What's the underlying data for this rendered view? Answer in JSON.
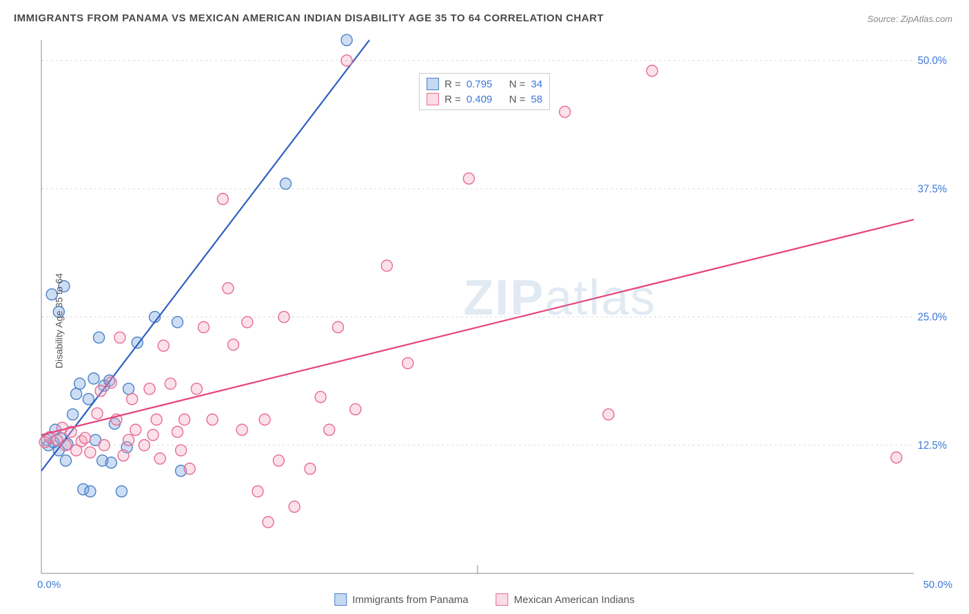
{
  "title": "IMMIGRANTS FROM PANAMA VS MEXICAN AMERICAN INDIAN DISABILITY AGE 35 TO 64 CORRELATION CHART",
  "source": "Source: ZipAtlas.com",
  "ylabel": "Disability Age 35 to 64",
  "watermark": {
    "bold": "ZIP",
    "rest": "atlas"
  },
  "chart": {
    "type": "scatter-correlation",
    "background_color": "#ffffff",
    "grid_color": "#d8d8d8",
    "axis_color": "#888888",
    "tick_label_color": "#3b78d8",
    "xlim": [
      0,
      50
    ],
    "ylim": [
      0,
      52
    ],
    "y_ticks": [
      12.5,
      25.0,
      37.5,
      50.0
    ],
    "y_tick_labels": [
      "12.5%",
      "25.0%",
      "37.5%",
      "50.0%"
    ],
    "x_min_label": "0.0%",
    "x_max_label": "50.0%",
    "marker_radius": 8,
    "marker_fill_opacity": 0.35,
    "marker_stroke_width": 1.4,
    "line_width": 2.2
  },
  "series": [
    {
      "key": "panama",
      "label": "Immigrants from Panama",
      "color": "#6fa1e0",
      "stroke": "#4b7fc6",
      "line_color": "#2d5fc0",
      "R": "0.795",
      "N": "34",
      "trend": {
        "x1": 0,
        "y1": 10,
        "x2": 18.8,
        "y2": 52
      },
      "points": [
        [
          0.3,
          13.0
        ],
        [
          0.4,
          12.5
        ],
        [
          0.7,
          12.8
        ],
        [
          0.8,
          14.0
        ],
        [
          1.0,
          12.0
        ],
        [
          1.1,
          13.2
        ],
        [
          1.4,
          11.0
        ],
        [
          1.5,
          12.6
        ],
        [
          1.8,
          15.5
        ],
        [
          2.0,
          17.5
        ],
        [
          2.2,
          18.5
        ],
        [
          2.4,
          8.2
        ],
        [
          2.8,
          8.0
        ],
        [
          3.0,
          19.0
        ],
        [
          3.1,
          13.0
        ],
        [
          3.3,
          23.0
        ],
        [
          3.5,
          11.0
        ],
        [
          3.9,
          18.8
        ],
        [
          4.0,
          10.8
        ],
        [
          4.2,
          14.6
        ],
        [
          4.6,
          8.0
        ],
        [
          4.9,
          12.3
        ],
        [
          5.5,
          22.5
        ],
        [
          6.5,
          25.0
        ],
        [
          7.8,
          24.5
        ],
        [
          8.0,
          10.0
        ],
        [
          1.0,
          25.5
        ],
        [
          0.6,
          27.2
        ],
        [
          1.3,
          28.0
        ],
        [
          3.6,
          18.3
        ],
        [
          5.0,
          18.0
        ],
        [
          14.0,
          38.0
        ],
        [
          17.5,
          52.0
        ],
        [
          2.7,
          17.0
        ]
      ]
    },
    {
      "key": "mexican",
      "label": "Mexican American Indians",
      "color": "#f4a8bd",
      "stroke": "#e86b93",
      "line_color": "#e7447a",
      "R": "0.409",
      "N": "58",
      "trend": {
        "x1": 0,
        "y1": 13.5,
        "x2": 50,
        "y2": 34.5
      },
      "points": [
        [
          0.2,
          12.8
        ],
        [
          0.5,
          13.3
        ],
        [
          0.9,
          13.0
        ],
        [
          1.2,
          14.2
        ],
        [
          1.4,
          12.5
        ],
        [
          1.7,
          13.8
        ],
        [
          2.0,
          12.0
        ],
        [
          2.3,
          12.9
        ],
        [
          2.8,
          11.8
        ],
        [
          3.2,
          15.6
        ],
        [
          3.4,
          17.8
        ],
        [
          3.6,
          12.5
        ],
        [
          4.0,
          18.6
        ],
        [
          4.3,
          15.0
        ],
        [
          4.7,
          11.5
        ],
        [
          5.0,
          13.0
        ],
        [
          5.4,
          14.0
        ],
        [
          5.9,
          12.5
        ],
        [
          6.2,
          18.0
        ],
        [
          6.6,
          15.0
        ],
        [
          6.8,
          11.2
        ],
        [
          7.0,
          22.2
        ],
        [
          7.4,
          18.5
        ],
        [
          7.8,
          13.8
        ],
        [
          8.2,
          15.0
        ],
        [
          8.5,
          10.2
        ],
        [
          8.9,
          18.0
        ],
        [
          9.3,
          24.0
        ],
        [
          9.8,
          15.0
        ],
        [
          10.4,
          36.5
        ],
        [
          10.7,
          27.8
        ],
        [
          11.0,
          22.3
        ],
        [
          11.5,
          14.0
        ],
        [
          11.8,
          24.5
        ],
        [
          12.4,
          8.0
        ],
        [
          12.8,
          15.0
        ],
        [
          13.0,
          5.0
        ],
        [
          13.6,
          11.0
        ],
        [
          13.9,
          25.0
        ],
        [
          14.5,
          6.5
        ],
        [
          15.4,
          10.2
        ],
        [
          16.0,
          17.2
        ],
        [
          16.5,
          14.0
        ],
        [
          17.0,
          24.0
        ],
        [
          17.5,
          50.0
        ],
        [
          18.0,
          16.0
        ],
        [
          19.8,
          30.0
        ],
        [
          21.0,
          20.5
        ],
        [
          24.5,
          38.5
        ],
        [
          30.0,
          45.0
        ],
        [
          32.5,
          15.5
        ],
        [
          35.0,
          49.0
        ],
        [
          49.0,
          11.3
        ],
        [
          2.5,
          13.2
        ],
        [
          4.5,
          23.0
        ],
        [
          5.2,
          17.0
        ],
        [
          6.4,
          13.5
        ],
        [
          8.0,
          12.0
        ]
      ]
    }
  ],
  "legend_top": {
    "R_label": "R =",
    "N_label": "N ="
  }
}
